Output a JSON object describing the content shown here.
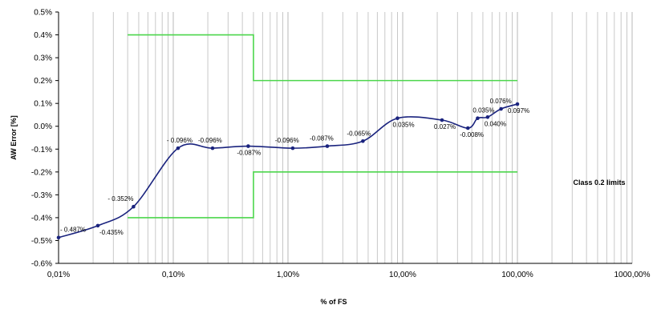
{
  "chart_data": {
    "type": "line",
    "xlabel": "% of FS",
    "ylabel": "AW Error [%]",
    "x_scale": "log",
    "xlim": [
      0.01,
      1000
    ],
    "ylim": [
      -0.6,
      0.5
    ],
    "x_ticks": [
      "0,01%",
      "0,10%",
      "1,00%",
      "10,00%",
      "100,00%",
      "1000,00%"
    ],
    "y_ticks": [
      "0.5%",
      "0.4%",
      "0.3%",
      "0.2%",
      "0.1%",
      "0.0%",
      "-0.1%",
      "-0.2%",
      "-0.3%",
      "-0.4%",
      "-0.5%",
      "-0.6%"
    ],
    "grid": "vertical minor log gridlines",
    "series": [
      {
        "color": "#1a237e",
        "x": [
          0.01,
          0.022,
          0.045,
          0.11,
          0.22,
          0.45,
          1.1,
          2.2,
          4.5,
          9,
          22,
          37,
          45,
          55,
          72,
          100
        ],
        "y": [
          -0.487,
          -0.435,
          -0.352,
          -0.096,
          -0.096,
          -0.087,
          -0.096,
          -0.087,
          -0.065,
          0.035,
          0.027,
          -0.008,
          0.035,
          0.04,
          0.076,
          0.097
        ],
        "labels": [
          "- 0.487%",
          "-0.435%",
          "- 0.352%",
          "- 0.096%",
          "-0.096%",
          "-0.087%",
          "-0.096%",
          "-0.087%",
          "-0.065%",
          "0.035%",
          "0.027%",
          "-0.008%",
          "0.035%",
          "0.040%",
          "0.076%",
          "0.097%"
        ]
      }
    ],
    "limits": {
      "color": "#4cd64c",
      "upper": [
        [
          0.04,
          0.4
        ],
        [
          0.5,
          0.4
        ],
        [
          0.5,
          0.2
        ],
        [
          100,
          0.2
        ]
      ],
      "lower": [
        [
          0.04,
          -0.4
        ],
        [
          0.5,
          -0.4
        ],
        [
          0.5,
          -0.2
        ],
        [
          100,
          -0.2
        ]
      ]
    },
    "annotation": "Class 0.2 limits"
  }
}
